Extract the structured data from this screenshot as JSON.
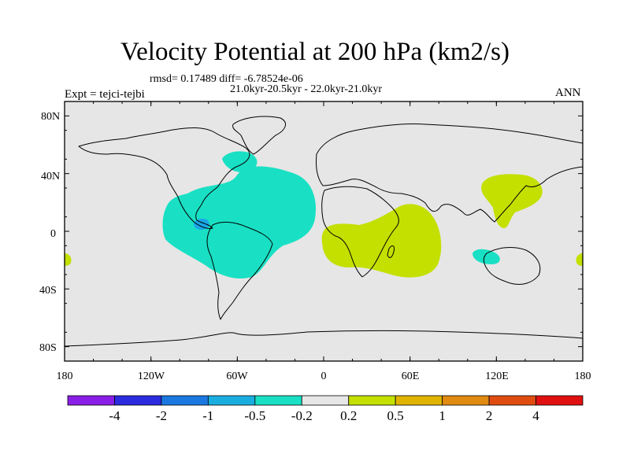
{
  "title": "Velocity Potential at 200 hPa (km2/s)",
  "stats": "rmsd= 0.17489 diff= -6.78524e-06",
  "period": "21.0kyr-20.5kyr - 22.0kyr-21.0kyr",
  "experiment": "Expt = tejci-tejbi",
  "season": "ANN",
  "lat_ticks": [
    "80N",
    "40N",
    "0",
    "40S",
    "80S"
  ],
  "lon_ticks": [
    "180",
    "120W",
    "60W",
    "0",
    "60E",
    "120E",
    "180"
  ],
  "colors": {
    "land_bg": "#e6e6e6",
    "neg_cyan": "#19e0c4",
    "neg_blue": "#1aa6e6",
    "pos_yellow": "#c3e000"
  },
  "colorbar": {
    "colors": [
      "#8a1ee6",
      "#2b2be0",
      "#1a78e0",
      "#1aaee0",
      "#19e0c4",
      "#e6e6e6",
      "#c3e000",
      "#e0b400",
      "#e08a12",
      "#e04c10",
      "#e01010"
    ],
    "labels": [
      "-4",
      "-2",
      "-1",
      "-0.5",
      "-0.2",
      "0.2",
      "0.5",
      "1",
      "2",
      "4"
    ]
  }
}
